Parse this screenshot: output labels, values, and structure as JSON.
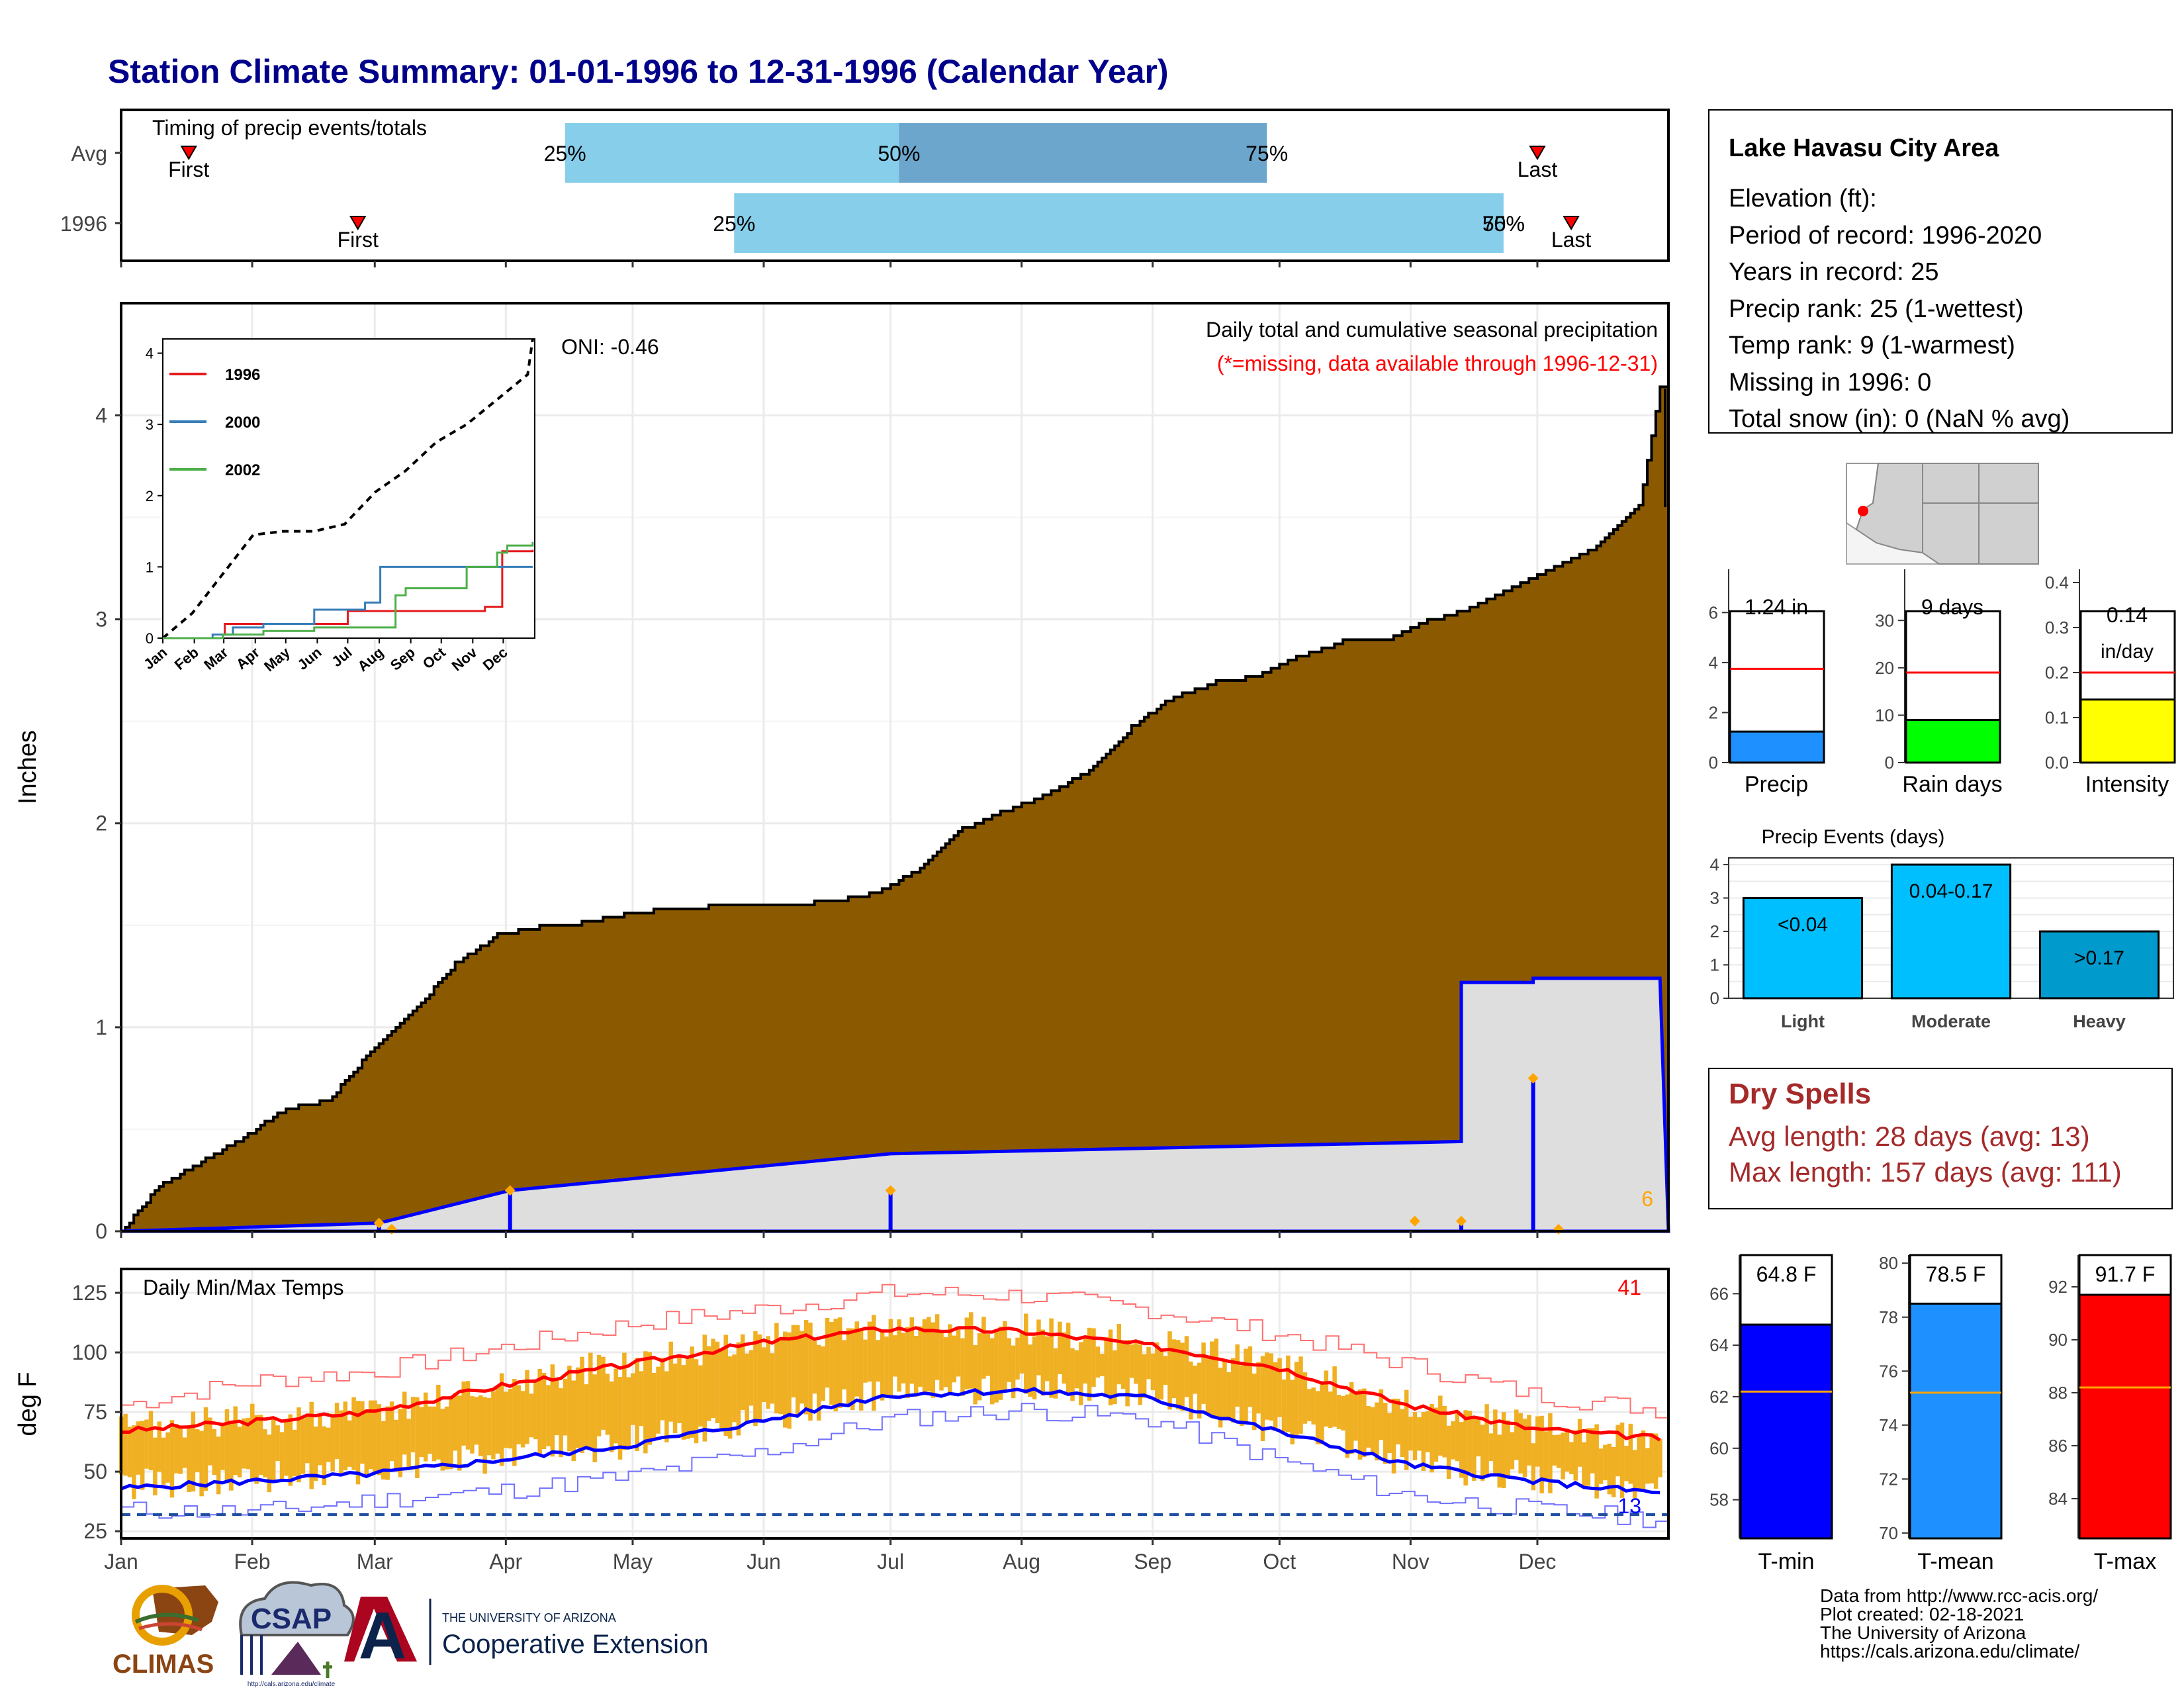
{
  "title": "Station Climate Summary: 01-01-1996 to 12-31-1996 (Calendar Year)",
  "months": [
    "Jan",
    "Feb",
    "Mar",
    "Apr",
    "May",
    "Jun",
    "Jul",
    "Aug",
    "Sep",
    "Oct",
    "Nov",
    "Dec"
  ],
  "timing": {
    "title": "Timing of precip events/totals",
    "rows": [
      {
        "label": "Avg",
        "first_doy": 17,
        "last_doy": 336,
        "p25_doy": 106,
        "p50_doy": 185,
        "p75_doy": 272,
        "first_label": "First",
        "last_label": "Last",
        "p25_label": "25%",
        "p50_label": "50%",
        "p75_label": "75%"
      },
      {
        "label": "1996",
        "first_doy": 57,
        "last_doy": 344,
        "p25_doy": 146,
        "p50_doy": 328,
        "p75_doy": 328,
        "first_label": "First",
        "last_label": "Last",
        "p25_label": "25%",
        "p50_label": "50%",
        "p75_label": "75%"
      }
    ]
  },
  "precip_panel": {
    "ylabel": "Inches",
    "yticks": [
      0,
      1,
      2,
      3,
      4
    ],
    "oni": "ONI: -0.46",
    "caption": "Daily total and cumulative seasonal precipitation",
    "missing_note": "(*=missing, data available through 1996-12-31)",
    "corner_count": "6"
  },
  "inset": {
    "yticks": [
      0,
      1,
      2,
      3,
      4
    ],
    "months": [
      "Jan",
      "Feb",
      "Mar",
      "Apr",
      "May",
      "Jun",
      "Jul",
      "Aug",
      "Sep",
      "Oct",
      "Nov",
      "Dec"
    ],
    "legend": [
      {
        "name": "1996",
        "color": "#e41a1c"
      },
      {
        "name": "2000",
        "color": "#377eb8"
      },
      {
        "name": "2002",
        "color": "#4daf4a"
      }
    ]
  },
  "temp_panel": {
    "ylabel": "deg F",
    "label": "Daily Min/Max Temps",
    "yticks": [
      25,
      50,
      75,
      100,
      125
    ],
    "count_hot": "41",
    "count_cold": "13"
  },
  "station": {
    "name": "Lake Havasu City Area",
    "lines": [
      "Elevation (ft):",
      "Period of record: 1996-2020",
      "Years in record: 25",
      "Precip rank: 25 (1-wettest)",
      "Temp rank: 9 (1-warmest)",
      "Missing in 1996: 0",
      "Total snow (in): 0 (NaN % avg)"
    ]
  },
  "summary_bars": [
    {
      "label": "Precip",
      "value_label": "1.24 in",
      "value": 1.24,
      "avg": 3.75,
      "ymax": 7.2,
      "yticks": [
        0,
        2,
        4,
        6
      ],
      "color": "#1e90ff"
    },
    {
      "label": "Rain days",
      "value_label": "9 days",
      "value": 9,
      "avg": 19,
      "ymax": 38,
      "yticks": [
        0,
        10,
        20,
        30
      ],
      "color": "#00ff00"
    },
    {
      "label": "Intensity",
      "value_label_1": "0.14",
      "value_label_2": "in/day",
      "value": 0.14,
      "avg": 0.2,
      "ymax": 0.4,
      "yticks": [
        "0.0",
        "0.1",
        "0.2",
        "0.3",
        "0.4"
      ],
      "color": "#ffff00"
    }
  ],
  "precip_events": {
    "title": "Precip Events (days)",
    "yticks": [
      0,
      1,
      2,
      3,
      4
    ],
    "bars": [
      {
        "label": "Light",
        "value": 3,
        "text": "<0.04",
        "color": "#00bfff"
      },
      {
        "label": "Moderate",
        "value": 4,
        "text": "0.04-0.17",
        "color": "#00bfff"
      },
      {
        "label": "Heavy",
        "value": 2,
        "text": ">0.17",
        "color": "#009acd"
      }
    ]
  },
  "dry_spells": {
    "title": "Dry Spells",
    "avg_line": "Avg length: 28 days (avg: 13)",
    "max_line": "Max length: 157 days (avg: 111)"
  },
  "temp_bars": [
    {
      "label": "T-min",
      "value_label": "64.8 F",
      "value": 64.8,
      "avg": 62.2,
      "ymin": 56.5,
      "ymax": 67.5,
      "yticks": [
        58,
        60,
        62,
        64,
        66
      ],
      "color": "#0000ff"
    },
    {
      "label": "T-mean",
      "value_label": "78.5 F",
      "value": 78.5,
      "avg": 75.2,
      "ymin": 69.8,
      "ymax": 80.3,
      "yticks": [
        70,
        72,
        74,
        76,
        78,
        80
      ],
      "color": "#1e90ff"
    },
    {
      "label": "T-max",
      "value_label": "91.7 F",
      "value": 91.7,
      "avg": 88.2,
      "ymin": 82.5,
      "ymax": 93.2,
      "yticks": [
        84,
        86,
        88,
        90,
        92
      ],
      "color": "#ff0000"
    }
  ],
  "footer": {
    "lines": [
      "Data from http://www.rcc-acis.org/",
      "Plot created: 02-18-2021",
      "The University of Arizona",
      "https://cals.arizona.edu/climate/"
    ]
  },
  "logos": {
    "climas": "CLIMAS",
    "csap": "CSAP",
    "csap_url": "http://cals.arizona.edu/climate",
    "ua_small": "THE UNIVERSITY OF ARIZONA",
    "ua_big": "Cooperative Extension",
    "ua_letter": "A"
  },
  "chart_data": [
    {
      "type": "area",
      "title": "Daily total and cumulative seasonal precipitation",
      "ylabel": "Inches",
      "ylim": [
        0,
        4.5
      ],
      "x_unit": "day of year (1996)",
      "series": [
        {
          "name": "",
          "x": [
            1,
            10,
            20,
            30,
            40,
            50,
            60,
            70,
            80,
            90,
            100,
            110,
            120,
            130,
            140,
            150,
            160,
            170,
            180,
            190,
            200,
            210,
            220,
            230,
            240,
            250,
            260,
            270,
            280,
            290,
            300,
            310,
            320,
            330,
            340,
            350,
            360,
            365
          ],
          "y": [
            0.0,
            0.22,
            0.34,
            0.46,
            0.6,
            0.64,
            0.88,
            1.07,
            1.31,
            1.45,
            1.49,
            1.51,
            1.55,
            1.58,
            1.59,
            1.6,
            1.6,
            1.62,
            1.66,
            1.78,
            1.97,
            2.06,
            2.14,
            2.26,
            2.47,
            2.62,
            2.69,
            2.72,
            2.82,
            2.89,
            2.9,
            2.99,
            3.05,
            3.16,
            3.25,
            3.35,
            3.55,
            4.13
          ]
        },
        {
          "name": "",
          "x": [
            1,
            62,
            93,
            93,
            183,
            183,
            318,
            318,
            335,
            335,
            365
          ],
          "y": [
            0.0,
            0.04,
            0.2,
            0.2,
            0.38,
            0.38,
            0.44,
            1.22,
            1.22,
            1.24,
            1.24
          ]
        }
      ]
    },
    {
      "type": "line",
      "title": "",
      "ylim": [
        0,
        4.2
      ],
      "series": [
        {
          "name": "",
          "x": [
            1,
            30,
            60,
            90,
            120,
            150,
            180,
            210,
            240,
            270,
            300,
            330,
            360,
            365
          ],
          "y": [
            0.0,
            0.35,
            0.9,
            1.45,
            1.5,
            1.5,
            1.6,
            2.05,
            2.35,
            2.75,
            3.0,
            3.35,
            3.7,
            4.2
          ]
        },
        {
          "name": "1996",
          "x": [
            1,
            60,
            62,
            93,
            183,
            318,
            335,
            365
          ],
          "y": [
            0.0,
            0.05,
            0.2,
            0.2,
            0.38,
            0.44,
            1.22,
            1.24
          ]
        },
        {
          "name": "2000",
          "x": [
            1,
            50,
            70,
            100,
            150,
            200,
            215,
            220,
            240,
            280,
            300,
            365
          ],
          "y": [
            0.0,
            0.05,
            0.15,
            0.2,
            0.4,
            0.5,
            1.0,
            1.0,
            1.0,
            1.0,
            1.0,
            1.0
          ]
        },
        {
          "name": "2002",
          "x": [
            1,
            60,
            100,
            150,
            200,
            230,
            240,
            270,
            300,
            330,
            340,
            365
          ],
          "y": [
            0.0,
            0.05,
            0.1,
            0.15,
            0.15,
            0.6,
            0.7,
            0.7,
            1.0,
            1.2,
            1.3,
            1.35
          ]
        }
      ]
    },
    {
      "type": "line",
      "title": "Daily Min/Max Temps",
      "ylabel": "deg F",
      "ylim": [
        22,
        135
      ],
      "series": [
        {
          "name": "",
          "x": [
            1,
            32,
            60,
            91,
            121,
            152,
            182,
            213,
            244,
            274,
            305,
            335,
            365
          ],
          "y": [
            67,
            71,
            75,
            86,
            95,
            104,
            110,
            109,
            103,
            94,
            78,
            68,
            64
          ]
        },
        {
          "name": "",
          "x": [
            1,
            32,
            60,
            91,
            121,
            152,
            182,
            213,
            244,
            274,
            305,
            335,
            365
          ],
          "y": [
            43,
            46,
            49,
            55,
            61,
            71,
            82,
            84,
            81,
            67,
            53,
            46,
            41
          ]
        },
        {
          "name": "",
          "x": [
            1,
            32,
            60,
            91,
            121,
            152,
            182,
            213,
            244,
            274,
            305,
            335,
            365
          ],
          "y": [
            78,
            88,
            92,
            102,
            112,
            118,
            125,
            124,
            118,
            108,
            95,
            82,
            76
          ]
        },
        {
          "name": "",
          "x": [
            1,
            32,
            60,
            91,
            121,
            152,
            182,
            213,
            244,
            274,
            305,
            335,
            365
          ],
          "y": [
            34,
            33,
            38,
            42,
            48,
            58,
            72,
            76,
            72,
            55,
            40,
            34,
            30
          ]
        },
        {
          "name": "",
          "x": [
            1,
            365
          ],
          "y": [
            32,
            32
          ]
        }
      ]
    }
  ]
}
